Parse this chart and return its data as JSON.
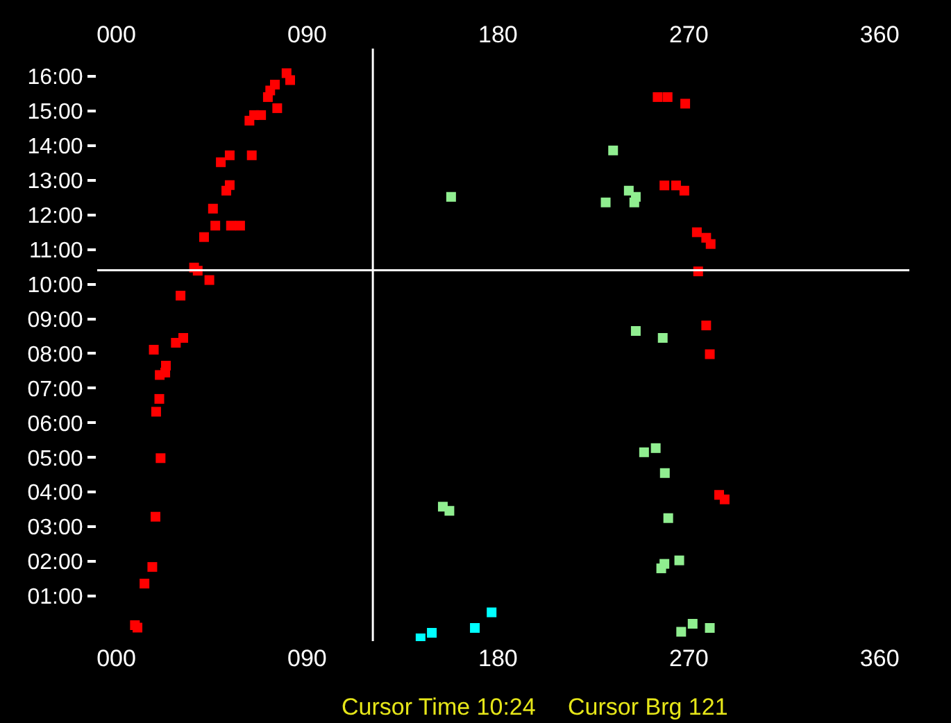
{
  "chart_data": {
    "type": "scatter",
    "marker": "square",
    "annotations": [
      "Cursor Time 10:24",
      "Cursor Brg 121"
    ],
    "xlim": [
      -9,
      374
    ],
    "xticks": [
      {
        "value": 0,
        "label": "000"
      },
      {
        "value": 90,
        "label": "090"
      },
      {
        "value": 180,
        "label": "180"
      },
      {
        "value": 270,
        "label": "270"
      },
      {
        "value": 360,
        "label": "360"
      }
    ],
    "x2lim": [
      -9,
      374
    ],
    "x2ticks": [
      {
        "value": 0,
        "label": "000"
      },
      {
        "value": 90,
        "label": "090"
      },
      {
        "value": 180,
        "label": "180"
      },
      {
        "value": 270,
        "label": "270"
      },
      {
        "value": 360,
        "label": "360"
      }
    ],
    "ylim": [
      -0.3,
      16.8
    ],
    "yticks": [
      {
        "value": 1,
        "label": "01:00"
      },
      {
        "value": 2,
        "label": "02:00"
      },
      {
        "value": 3,
        "label": "03:00"
      },
      {
        "value": 4,
        "label": "04:00"
      },
      {
        "value": 5,
        "label": "05:00"
      },
      {
        "value": 6,
        "label": "06:00"
      },
      {
        "value": 7,
        "label": "07:00"
      },
      {
        "value": 8,
        "label": "08:00"
      },
      {
        "value": 9,
        "label": "09:00"
      },
      {
        "value": 10,
        "label": "10:00"
      },
      {
        "value": 11,
        "label": "11:00"
      },
      {
        "value": 12,
        "label": "12:00"
      },
      {
        "value": 13,
        "label": "13:00"
      },
      {
        "value": 14,
        "label": "14:00"
      },
      {
        "value": 15,
        "label": "15:00"
      },
      {
        "value": 16,
        "label": "16:00"
      }
    ],
    "ref_lines": [
      {
        "axis": "x",
        "value": 121,
        "color": "#ffffff"
      },
      {
        "axis": "y",
        "value": 10.4,
        "color": "#ffffff"
      }
    ],
    "series": [
      {
        "color": "#ff0000",
        "x": [
          80.3,
          82.0,
          74.8,
          72.6,
          71.5,
          75.9,
          68.3,
          65.0,
          62.8,
          63.9,
          53.5,
          49.3,
          53.5,
          51.9,
          45.6,
          46.7,
          54.1,
          58.4,
          41.4,
          36.7,
          38.4,
          43.9,
          30.3,
          31.6,
          28.1,
          17.7,
          23.4,
          23.1,
          20.5,
          20.3,
          18.8,
          20.9,
          18.5,
          17.0,
          13.3,
          10.0,
          8.8,
          255.3,
          260.0,
          268.3,
          258.5,
          264.0,
          267.9,
          273.8,
          278.2,
          280.3,
          274.4,
          278.2,
          279.9,
          284.3,
          286.9
        ],
        "values": [
          16.09,
          15.89,
          15.76,
          15.59,
          15.4,
          15.08,
          14.88,
          14.88,
          14.72,
          13.72,
          13.72,
          13.52,
          12.86,
          12.7,
          12.18,
          11.69,
          11.69,
          11.69,
          11.36,
          10.48,
          10.39,
          10.12,
          9.67,
          8.45,
          8.31,
          8.11,
          7.65,
          7.45,
          7.38,
          6.69,
          6.32,
          4.98,
          3.29,
          1.84,
          1.36,
          0.09,
          0.16,
          15.4,
          15.4,
          15.21,
          12.85,
          12.85,
          12.7,
          11.5,
          11.34,
          11.16,
          10.37,
          8.81,
          7.98,
          3.92,
          3.79
        ]
      },
      {
        "color": "#90ee90",
        "x": [
          157.9,
          234.3,
          241.7,
          245.0,
          230.8,
          244.3,
          245.0,
          257.7,
          248.9,
          254.4,
          258.7,
          260.3,
          154.0,
          157.1,
          257.0,
          258.5,
          265.5,
          266.4,
          271.8,
          279.9
        ],
        "values": [
          12.52,
          13.86,
          12.7,
          12.52,
          12.36,
          12.36,
          8.65,
          8.45,
          5.15,
          5.27,
          4.55,
          3.25,
          3.58,
          3.46,
          1.8,
          1.93,
          2.03,
          -0.03,
          0.2,
          0.08
        ]
      },
      {
        "color": "#00ffff",
        "x": [
          143.5,
          148.8,
          169.1,
          177.0
        ],
        "values": [
          -0.22,
          -0.06,
          0.08,
          0.53
        ]
      }
    ]
  }
}
